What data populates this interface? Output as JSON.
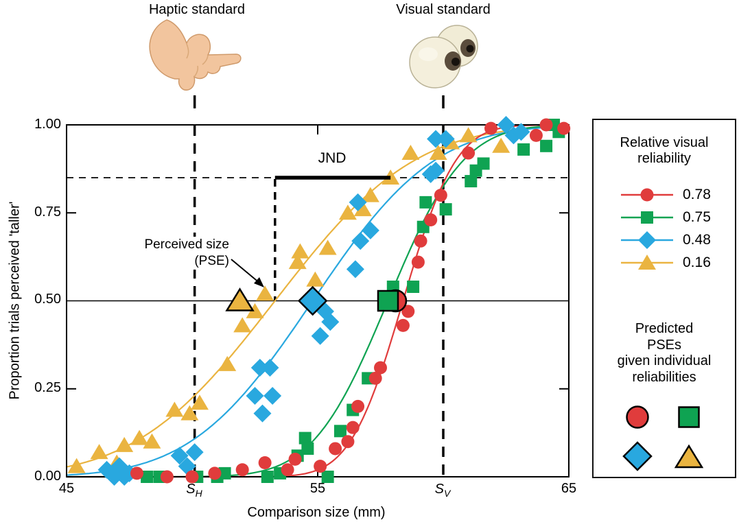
{
  "header": {
    "haptic_label": "Haptic standard",
    "visual_label": "Visual standard"
  },
  "axes": {
    "y_title": "Proportion trials perceived 'taller'",
    "x_title": "Comparison size (mm)",
    "y_ticks": [
      "1.00",
      "0.75",
      "0.50",
      "0.25",
      "0.00"
    ],
    "x_ticks": [
      "45",
      "55",
      "65"
    ],
    "s_labels": [
      {
        "base": "S",
        "sub": "H"
      },
      {
        "base": "S",
        "sub": "V"
      }
    ]
  },
  "annotations": {
    "jnd_label": "JND",
    "perceived_line1": "Perceived size",
    "perceived_line2": "(PSE)"
  },
  "legend": {
    "title_lines": [
      "Relative visual",
      "reliability"
    ],
    "items": [
      {
        "label": "0.78",
        "color": "#e03c3c",
        "marker": "circle"
      },
      {
        "label": "0.75",
        "color": "#0fa352",
        "marker": "square"
      },
      {
        "label": "0.48",
        "color": "#29a8df",
        "marker": "diamond"
      },
      {
        "label": "0.16",
        "color": "#eab440",
        "marker": "triangle"
      }
    ],
    "pse_title_lines": [
      "Predicted",
      "PSEs",
      "given individual",
      "reliabilities"
    ]
  },
  "chart_data": {
    "type": "scatter",
    "subtype": "psychometric-functions",
    "xlabel": "Comparison size (mm)",
    "ylabel": "Proportion trials perceived 'taller'",
    "xlim": [
      45,
      65
    ],
    "ylim": [
      0,
      1
    ],
    "grid": false,
    "reference_lines": {
      "haptic_standard_x": 50.1,
      "visual_standard_x": 60.0,
      "pse_vertical_x": 53.3,
      "half_proportion_y": 0.5,
      "jnd_criterion_y": 0.85
    },
    "jnd_bar": {
      "x1": 53.3,
      "x2": 57.9,
      "y": 0.85
    },
    "series": [
      {
        "name": "0.78",
        "color": "#e03c3c",
        "marker": "circle",
        "curve": {
          "type": "cumulative-gaussian",
          "mu": 58.4,
          "sigma": 1.65
        },
        "predicted_pse_x": 58.1,
        "points": [
          [
            47.8,
            0.01
          ],
          [
            49.0,
            0.0
          ],
          [
            50.0,
            0.0
          ],
          [
            50.9,
            0.01
          ],
          [
            52.0,
            0.02
          ],
          [
            52.9,
            0.04
          ],
          [
            53.8,
            0.02
          ],
          [
            54.1,
            0.05
          ],
          [
            55.1,
            0.03
          ],
          [
            55.7,
            0.08
          ],
          [
            56.2,
            0.1
          ],
          [
            56.4,
            0.14
          ],
          [
            56.6,
            0.2
          ],
          [
            57.3,
            0.28
          ],
          [
            57.5,
            0.31
          ],
          [
            58.4,
            0.43
          ],
          [
            58.6,
            0.47
          ],
          [
            59.0,
            0.61
          ],
          [
            59.1,
            0.67
          ],
          [
            59.5,
            0.73
          ],
          [
            59.9,
            0.8
          ],
          [
            61.0,
            0.92
          ],
          [
            61.9,
            0.99
          ],
          [
            63.7,
            0.97
          ],
          [
            64.1,
            1.0
          ],
          [
            64.8,
            0.99
          ]
        ]
      },
      {
        "name": "0.75",
        "color": "#0fa352",
        "marker": "square",
        "curve": {
          "type": "cumulative-gaussian",
          "mu": 57.8,
          "sigma": 2.35
        },
        "predicted_pse_x": 57.8,
        "points": [
          [
            48.2,
            0.0
          ],
          [
            48.7,
            0.0
          ],
          [
            50.2,
            0.0
          ],
          [
            51.0,
            0.0
          ],
          [
            51.3,
            0.01
          ],
          [
            53.0,
            0.0
          ],
          [
            53.5,
            0.01
          ],
          [
            54.2,
            0.06
          ],
          [
            54.5,
            0.11
          ],
          [
            54.6,
            0.08
          ],
          [
            55.4,
            0.0
          ],
          [
            55.9,
            0.13
          ],
          [
            56.4,
            0.19
          ],
          [
            57.0,
            0.28
          ],
          [
            58.0,
            0.54
          ],
          [
            58.8,
            0.54
          ],
          [
            59.2,
            0.71
          ],
          [
            59.3,
            0.78
          ],
          [
            60.1,
            0.76
          ],
          [
            61.1,
            0.84
          ],
          [
            61.3,
            0.87
          ],
          [
            61.6,
            0.89
          ],
          [
            63.2,
            0.93
          ],
          [
            64.1,
            0.94
          ],
          [
            64.4,
            1.0
          ],
          [
            64.6,
            0.98
          ]
        ]
      },
      {
        "name": "0.48",
        "color": "#29a8df",
        "marker": "diamond",
        "curve": {
          "type": "cumulative-gaussian",
          "mu": 54.8,
          "sigma": 3.8
        },
        "predicted_pse_x": 54.8,
        "points": [
          [
            46.6,
            0.02
          ],
          [
            46.9,
            0.0
          ],
          [
            47.1,
            0.03
          ],
          [
            47.3,
            0.0
          ],
          [
            47.5,
            0.01
          ],
          [
            49.5,
            0.06
          ],
          [
            49.8,
            0.03
          ],
          [
            50.1,
            0.07
          ],
          [
            52.5,
            0.23
          ],
          [
            52.7,
            0.31
          ],
          [
            52.8,
            0.18
          ],
          [
            53.1,
            0.31
          ],
          [
            53.2,
            0.23
          ],
          [
            55.1,
            0.4
          ],
          [
            55.3,
            0.47
          ],
          [
            55.5,
            0.44
          ],
          [
            56.5,
            0.59
          ],
          [
            56.6,
            0.78
          ],
          [
            56.7,
            0.67
          ],
          [
            57.1,
            0.7
          ],
          [
            59.5,
            0.86
          ],
          [
            59.7,
            0.87
          ],
          [
            59.7,
            0.96
          ],
          [
            60.1,
            0.96
          ],
          [
            62.5,
            1.0
          ],
          [
            62.8,
            0.97
          ],
          [
            63.1,
            0.98
          ]
        ]
      },
      {
        "name": "0.16",
        "color": "#eab440",
        "marker": "triangle",
        "curve": {
          "type": "cumulative-gaussian",
          "mu": 53.3,
          "sigma": 4.35
        },
        "predicted_pse_x": 51.9,
        "points": [
          [
            45.4,
            0.03
          ],
          [
            46.3,
            0.07
          ],
          [
            47.0,
            0.04
          ],
          [
            47.3,
            0.09
          ],
          [
            47.9,
            0.11
          ],
          [
            48.4,
            0.1
          ],
          [
            49.3,
            0.19
          ],
          [
            49.9,
            0.18
          ],
          [
            50.3,
            0.21
          ],
          [
            51.4,
            0.32
          ],
          [
            52.0,
            0.43
          ],
          [
            52.5,
            0.47
          ],
          [
            52.9,
            0.52
          ],
          [
            54.2,
            0.61
          ],
          [
            54.3,
            0.64
          ],
          [
            54.9,
            0.56
          ],
          [
            55.4,
            0.65
          ],
          [
            56.2,
            0.75
          ],
          [
            56.8,
            0.76
          ],
          [
            57.1,
            0.8
          ],
          [
            57.9,
            0.85
          ],
          [
            58.7,
            0.92
          ],
          [
            59.8,
            0.92
          ],
          [
            60.3,
            0.95
          ],
          [
            61.0,
            0.97
          ],
          [
            62.3,
            0.94
          ]
        ]
      }
    ]
  }
}
